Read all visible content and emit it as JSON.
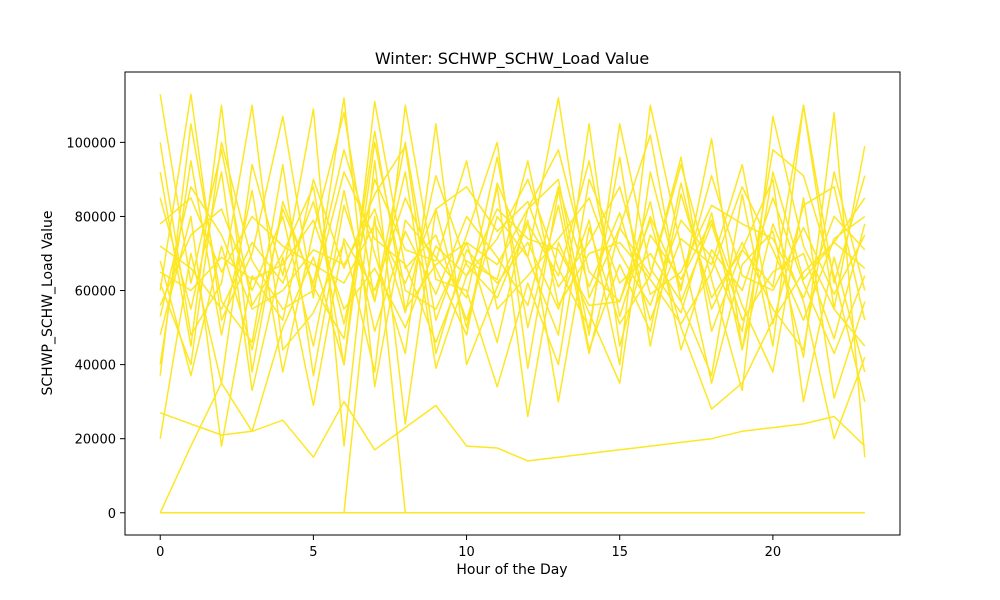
{
  "chart_data": {
    "type": "line",
    "title": "Winter: SCHWP_SCHW_Load Value",
    "xlabel": "Hour of the Day",
    "ylabel": "SCHWP_SCHW_Load Value",
    "xlim": [
      -1.15,
      24.15
    ],
    "ylim": [
      -6000,
      119000
    ],
    "x_ticks": [
      0,
      5,
      10,
      15,
      20
    ],
    "y_ticks": [
      0,
      20000,
      40000,
      60000,
      80000,
      100000
    ],
    "x_tick_labels": [
      "0",
      "5",
      "10",
      "15",
      "20"
    ],
    "y_tick_labels": [
      "0",
      "20000",
      "40000",
      "60000",
      "80000",
      "100000"
    ],
    "grid": false,
    "legend": "none",
    "line_color": "#fde725",
    "x": [
      0,
      1,
      2,
      3,
      4,
      5,
      6,
      7,
      8,
      9,
      10,
      11,
      12,
      13,
      14,
      15,
      16,
      17,
      18,
      19,
      20,
      21,
      22,
      23
    ],
    "series": [
      {
        "values": [
          113000,
          62000,
          98000,
          56000,
          70000,
          88000,
          40000,
          111000,
          66000,
          75000,
          52000,
          80000,
          69000,
          112000,
          58000,
          77000,
          64000,
          96000,
          49000,
          71000,
          61000,
          110000,
          55000,
          99000
        ]
      },
      {
        "values": [
          0,
          0,
          0,
          0,
          0,
          0,
          0,
          0,
          0,
          0,
          0,
          0,
          0,
          0,
          0,
          0,
          0,
          0,
          0,
          0,
          0,
          0,
          0,
          0
        ]
      },
      {
        "values": [
          27000,
          24000,
          21000,
          22000,
          25000,
          15000,
          30000,
          17000,
          23000,
          29000,
          18000,
          17500,
          14000,
          15000,
          16000,
          17000,
          18000,
          19000,
          20000,
          22000,
          23000,
          24000,
          26000,
          18000
        ]
      },
      {
        "values": [
          92000,
          45000,
          110000,
          38000,
          84000,
          61000,
          47000,
          103000,
          55000,
          67000,
          73000,
          46000,
          82000,
          90000,
          48000,
          105000,
          66000,
          54000,
          81000,
          44000,
          92000,
          63000,
          73000,
          85000
        ]
      },
      {
        "values": [
          60000,
          113000,
          52000,
          70000,
          107000,
          58000,
          112000,
          34000,
          79000,
          69000,
          58000,
          96000,
          50000,
          83000,
          43000,
          77000,
          102000,
          57000,
          37000,
          86000,
          45000,
          110000,
          62000,
          91000
        ]
      },
      {
        "values": [
          48000,
          80000,
          18000,
          64000,
          52000,
          90000,
          66000,
          86000,
          99000,
          43000,
          71000,
          62000,
          73000,
          55000,
          79000,
          40000,
          110000,
          72000,
          35000,
          67000,
          76000,
          42000,
          108000,
          15000
        ]
      },
      {
        "values": [
          68000,
          37000,
          72000,
          44000,
          82000,
          62000,
          98000,
          70000,
          43000,
          105000,
          40000,
          61000,
          79000,
          30000,
          77000,
          51000,
          64000,
          94000,
          63000,
          33000,
          107000,
          72000,
          55000,
          45000
        ]
      },
      {
        "values": [
          0,
          18000,
          35000,
          22000,
          50000,
          69000,
          40000,
          100000,
          60000,
          55000,
          73000,
          67000,
          82000,
          98000,
          65000,
          57000,
          79000,
          50000,
          28000,
          35000,
          52000,
          65000,
          73000,
          66000
        ]
      },
      {
        "values": [
          85000,
          55000,
          92000,
          33000,
          69000,
          29000,
          74000,
          60000,
          85000,
          66000,
          48000,
          89000,
          69000,
          48000,
          105000,
          45000,
          75000,
          63000,
          79000,
          56000,
          38000,
          85000,
          31000,
          57000
        ]
      },
      {
        "values": [
          40000,
          95000,
          48000,
          87000,
          38000,
          76000,
          108000,
          57000,
          92000,
          39000,
          64000,
          74000,
          90000,
          66000,
          50000,
          96000,
          45000,
          86000,
          58000,
          71000,
          90000,
          30000,
          69000,
          38000
        ]
      },
      {
        "values": [
          72000,
          66000,
          55000,
          73000,
          62000,
          84000,
          51000,
          90000,
          71000,
          68000,
          95000,
          55000,
          64000,
          74000,
          85000,
          62000,
          70000,
          57000,
          78000,
          52000,
          65000,
          70000,
          47000,
          78000
        ]
      },
      {
        "values": [
          56000,
          75000,
          82000,
          60000,
          80000,
          45000,
          87000,
          49000,
          76000,
          59000,
          80000,
          69000,
          56000,
          88000,
          61000,
          81000,
          52000,
          74000,
          67000,
          94000,
          51000,
          83000,
          88000,
          52000
        ]
      },
      {
        "values": [
          20000,
          70000,
          35000,
          94000,
          64000,
          109000,
          18000,
          95000,
          24000,
          82000,
          50000,
          88000,
          26000,
          73000,
          54000,
          35000,
          92000,
          60000,
          101000,
          44000,
          78000,
          57000,
          20000,
          42000
        ]
      },
      {
        "values": [
          78000,
          85000,
          65000,
          80000,
          72000,
          67000,
          62000,
          78000,
          62000,
          82000,
          88000,
          76000,
          84000,
          61000,
          73000,
          88000,
          59000,
          65000,
          83000,
          78000,
          74000,
          58000,
          80000,
          71000
        ]
      },
      {
        "values": [
          100000,
          48000,
          62000,
          110000,
          44000,
          54000,
          73000,
          38000,
          110000,
          63000,
          60000,
          34000,
          62000,
          40000,
          90000,
          70000,
          56000,
          79000,
          69000,
          49000,
          98000,
          91000,
          64000,
          30000
        ]
      },
      {
        "values": [
          65000,
          60000,
          69000,
          63000,
          67000,
          79000,
          55000,
          66000,
          50000,
          72000,
          64000,
          82000,
          74000,
          71000,
          56000,
          57000,
          84000,
          44000,
          71000,
          60000,
          85000,
          62000,
          43000,
          64000
        ]
      },
      {
        "values": [
          37000,
          105000,
          57000,
          46000,
          94000,
          37000,
          83000,
          57000,
          100000,
          52000,
          75000,
          100000,
          39000,
          87000,
          44000,
          67000,
          49000,
          89000,
          55000,
          73000,
          55000,
          44000,
          92000,
          60000
        ]
      },
      {
        "values": [
          53000,
          88000,
          75000,
          55000,
          60000,
          71000,
          67000,
          82000,
          54000,
          91000,
          67000,
          58000,
          78000,
          64000,
          95000,
          53000,
          80000,
          61000,
          91000,
          64000,
          60000,
          77000,
          59000,
          75000
        ]
      },
      {
        "values": [
          0,
          0,
          0,
          0,
          0,
          0,
          0,
          80000,
          0,
          0,
          0,
          0,
          0,
          0,
          0,
          0,
          0,
          0,
          0,
          0,
          0,
          0,
          0,
          0
        ]
      },
      {
        "values": [
          62000,
          40000,
          100000,
          68000,
          55000,
          60000,
          92000,
          74000,
          67000,
          46000,
          68000,
          63000,
          95000,
          56000,
          70000,
          73000,
          63000,
          51000,
          65000,
          88000,
          71000,
          52000,
          74000,
          80000
        ]
      }
    ]
  }
}
